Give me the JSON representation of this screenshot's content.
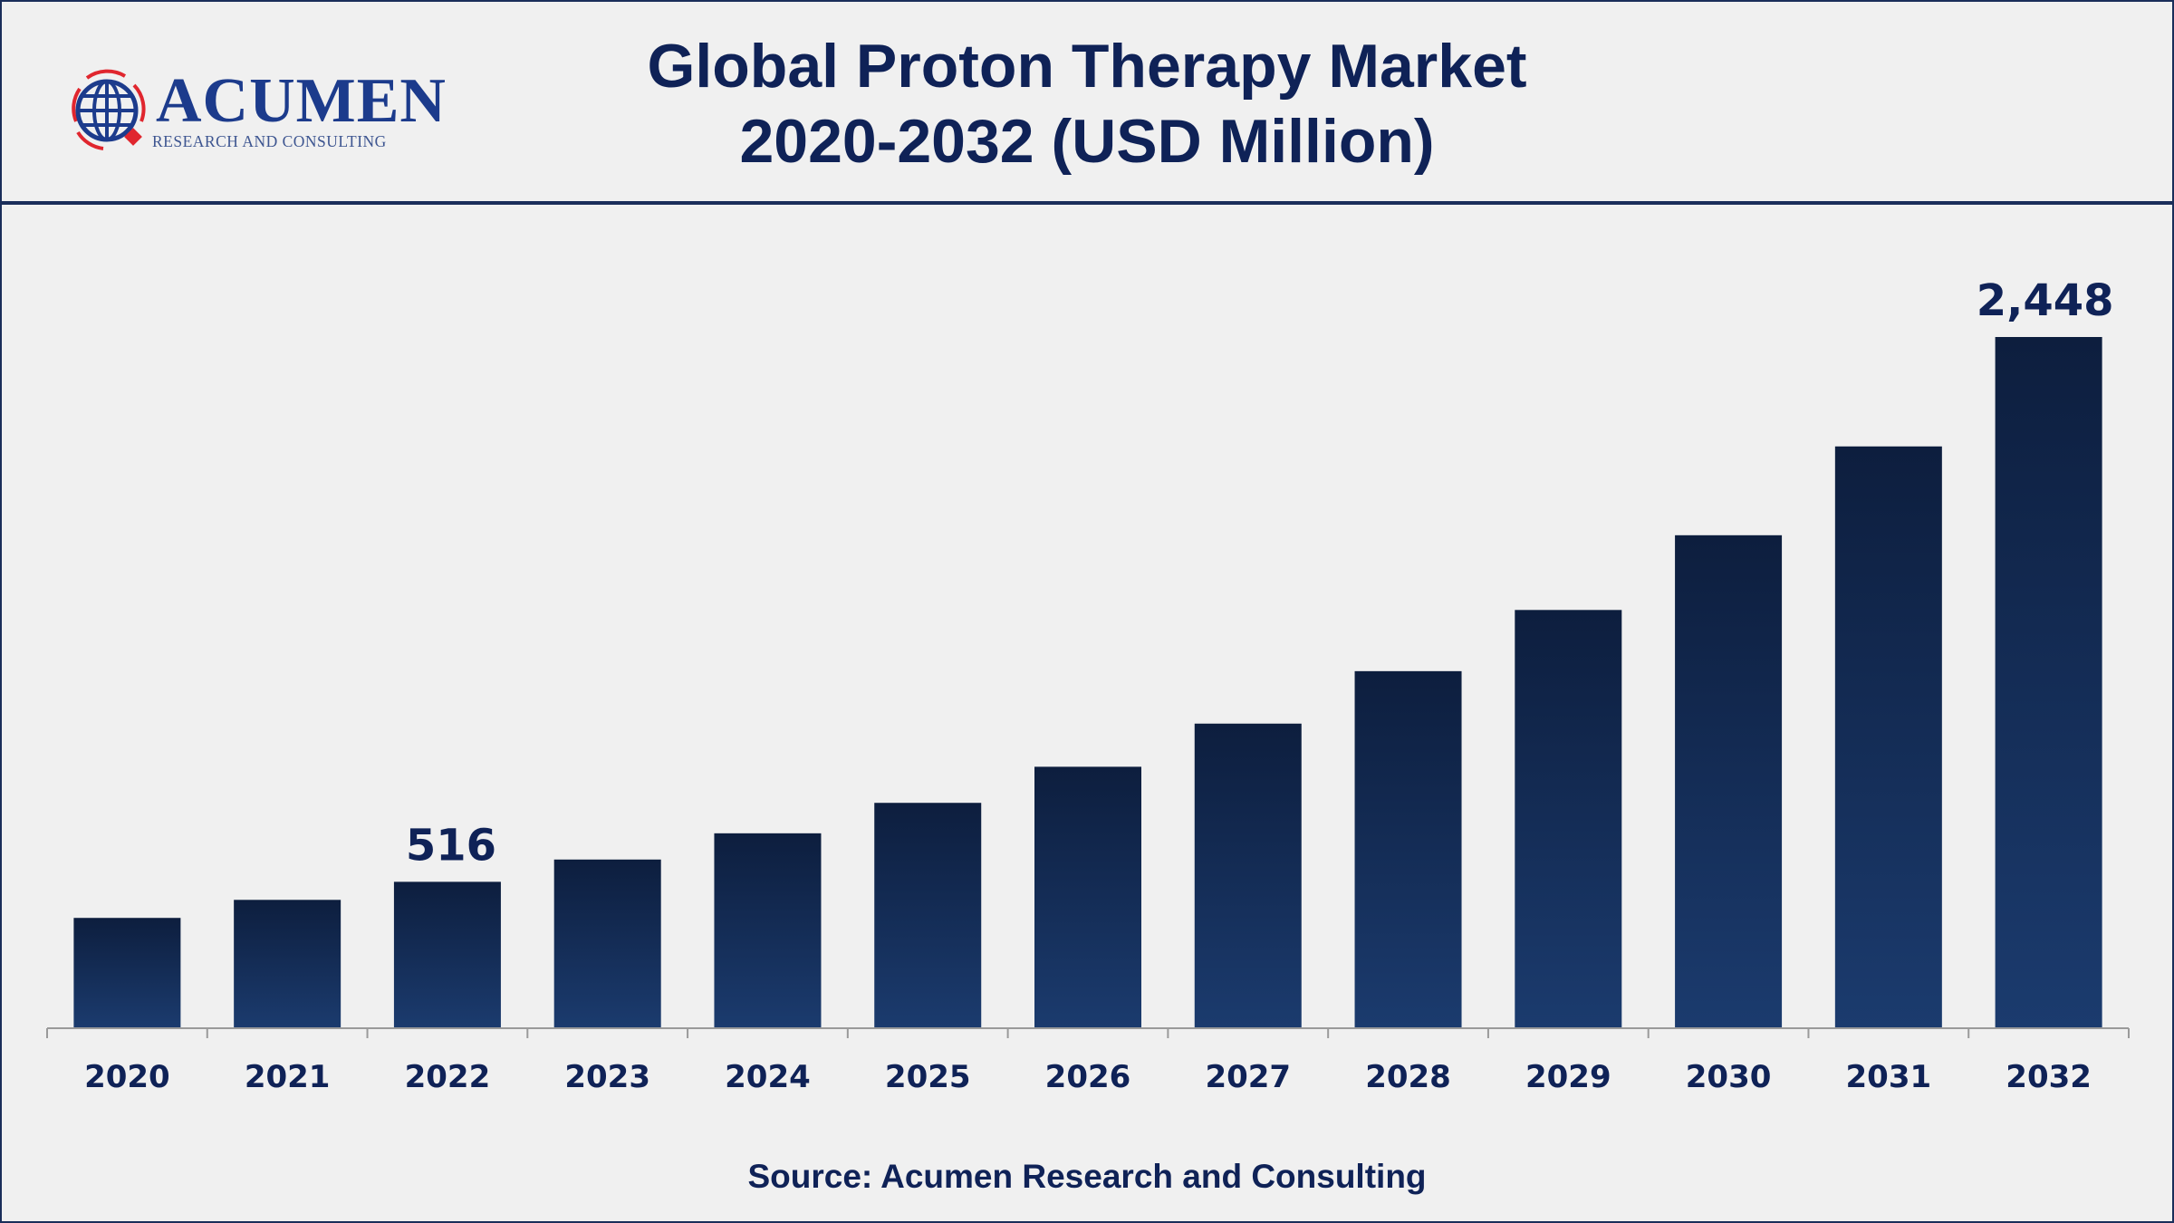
{
  "header": {
    "title_line1": "Global Proton Therapy Market",
    "title_line2": "2020-2032 (USD Million)"
  },
  "logo": {
    "name": "ACUMEN",
    "tagline": "RESEARCH AND CONSULTING"
  },
  "source": "Source: Acumen Research and Consulting",
  "colors": {
    "bar_top": "#0d1e3e",
    "bar_bottom": "#1b3b6e",
    "text": "#0f2257",
    "accent_red": "#e0262e"
  },
  "chart_data": {
    "type": "bar",
    "title": "Global Proton Therapy Market 2020-2032 (USD Million)",
    "categories": [
      "2020",
      "2021",
      "2022",
      "2023",
      "2024",
      "2025",
      "2026",
      "2027",
      "2028",
      "2029",
      "2030",
      "2031",
      "2032"
    ],
    "values": [
      388,
      452,
      516,
      595,
      688,
      796,
      924,
      1077,
      1263,
      1480,
      1745,
      2060,
      2448
    ],
    "data_labels": {
      "2022": "516",
      "2032": "2,448"
    },
    "xlabel": "",
    "ylabel": "",
    "ylim": [
      0,
      2448
    ],
    "grid": false,
    "legend": "none"
  }
}
